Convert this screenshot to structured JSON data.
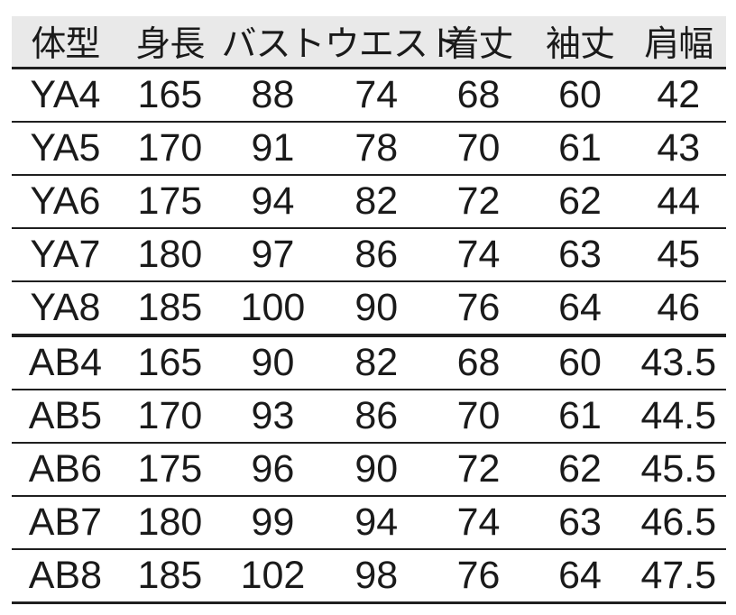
{
  "chart_data": {
    "type": "table",
    "title": "",
    "headers": [
      "体型",
      "身長",
      "バスト",
      "ウエスト",
      "着丈",
      "袖丈",
      "肩幅"
    ],
    "rows": [
      [
        "YA4",
        "165",
        "88",
        "74",
        "68",
        "60",
        "42"
      ],
      [
        "YA5",
        "170",
        "91",
        "78",
        "70",
        "61",
        "43"
      ],
      [
        "YA6",
        "175",
        "94",
        "82",
        "72",
        "62",
        "44"
      ],
      [
        "YA7",
        "180",
        "97",
        "86",
        "74",
        "63",
        "45"
      ],
      [
        "YA8",
        "185",
        "100",
        "90",
        "76",
        "64",
        "46"
      ],
      [
        "AB4",
        "165",
        "90",
        "82",
        "68",
        "60",
        "43.5"
      ],
      [
        "AB5",
        "170",
        "93",
        "86",
        "70",
        "61",
        "44.5"
      ],
      [
        "AB6",
        "175",
        "96",
        "90",
        "72",
        "62",
        "45.5"
      ],
      [
        "AB7",
        "180",
        "99",
        "94",
        "74",
        "63",
        "46.5"
      ],
      [
        "AB8",
        "185",
        "102",
        "98",
        "76",
        "64",
        "47.5"
      ]
    ],
    "thick_divider_after_row_index": 4,
    "layout": {
      "grid": "horizontal-rules-only",
      "header_row": true,
      "column_alignment": "center"
    },
    "colors": {
      "header_bg": "#e9e9e9",
      "text": "#1a1a1a",
      "line": "#1f1f1f",
      "background": "#ffffff"
    }
  }
}
